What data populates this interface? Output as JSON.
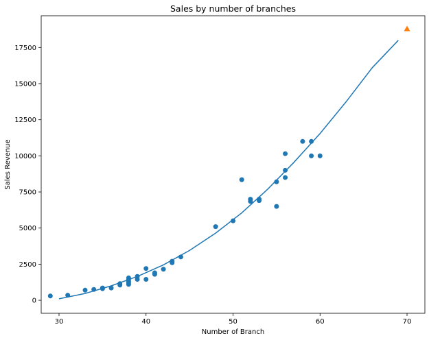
{
  "chart_data": {
    "type": "scatter",
    "title": "Sales by number of branches",
    "xlabel": "Number of Branch",
    "ylabel": "Sales Revenue",
    "xlim": [
      27.95,
      72.05
    ],
    "ylim": [
      -900,
      19700
    ],
    "x_ticks": [
      "30",
      "40",
      "50",
      "60",
      "70"
    ],
    "x_tick_values": [
      30,
      40,
      50,
      60,
      70
    ],
    "y_ticks": [
      "0",
      "2500",
      "5000",
      "7500",
      "10000",
      "12500",
      "15000",
      "17500"
    ],
    "y_tick_values": [
      0,
      2500,
      5000,
      7500,
      10000,
      12500,
      15000,
      17500
    ],
    "grid": false,
    "legend": "none",
    "series": [
      {
        "kind": "scatter",
        "marker": "circle",
        "color": "#1f77b4",
        "points": [
          [
            29,
            300
          ],
          [
            31,
            350
          ],
          [
            33,
            700
          ],
          [
            34,
            750
          ],
          [
            35,
            800
          ],
          [
            35,
            850
          ],
          [
            36,
            850
          ],
          [
            37,
            1050
          ],
          [
            37,
            1150
          ],
          [
            38,
            1100
          ],
          [
            38,
            1200
          ],
          [
            38,
            1300
          ],
          [
            38,
            1450
          ],
          [
            38,
            1550
          ],
          [
            39,
            1450
          ],
          [
            39,
            1650
          ],
          [
            40,
            1450
          ],
          [
            40,
            2200
          ],
          [
            41,
            1800
          ],
          [
            41,
            1900
          ],
          [
            42,
            2150
          ],
          [
            43,
            2600
          ],
          [
            43,
            2700
          ],
          [
            44,
            3000
          ],
          [
            48,
            5100
          ],
          [
            50,
            5500
          ],
          [
            51,
            8350
          ],
          [
            52,
            6850
          ],
          [
            52,
            7000
          ],
          [
            53,
            6900
          ],
          [
            53,
            7000
          ],
          [
            55,
            6500
          ],
          [
            55,
            8200
          ],
          [
            56,
            8500
          ],
          [
            56,
            9000
          ],
          [
            56,
            10150
          ],
          [
            58,
            11000
          ],
          [
            59,
            10000
          ],
          [
            59,
            11000
          ],
          [
            60,
            10000
          ]
        ]
      },
      {
        "kind": "line",
        "color": "#1f77b4",
        "points": [
          [
            30,
            100
          ],
          [
            33,
            470
          ],
          [
            36,
            1000
          ],
          [
            39,
            1650
          ],
          [
            42,
            2450
          ],
          [
            45,
            3450
          ],
          [
            48,
            4650
          ],
          [
            51,
            6050
          ],
          [
            54,
            7700
          ],
          [
            57,
            9550
          ],
          [
            60,
            11550
          ],
          [
            63,
            13750
          ],
          [
            66,
            16100
          ],
          [
            69,
            18000
          ]
        ]
      },
      {
        "kind": "scatter",
        "marker": "triangle",
        "color": "#ff7f0e",
        "points": [
          [
            70,
            18800
          ]
        ]
      }
    ]
  }
}
